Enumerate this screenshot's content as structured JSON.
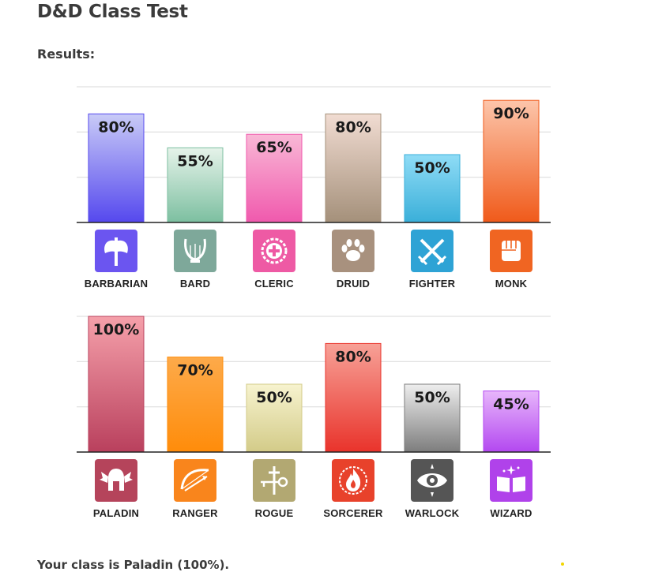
{
  "page": {
    "title": "D&D Class Test",
    "results_label": "Results:",
    "result_text": "Your class is Paladin (100%)."
  },
  "chart_data": [
    {
      "type": "bar",
      "categories": [
        "BARBARIAN",
        "BARD",
        "CLERIC",
        "DRUID",
        "FIGHTER",
        "MONK"
      ],
      "values": [
        80,
        55,
        65,
        80,
        50,
        90
      ],
      "value_labels": [
        "80%",
        "55%",
        "65%",
        "80%",
        "50%",
        "90%"
      ],
      "ylim": [
        0,
        100
      ],
      "grid": true,
      "colors": [
        [
          "#c9cbf7",
          "#5548ee"
        ],
        [
          "#e6f3ea",
          "#7cbfa0"
        ],
        [
          "#f9b8d6",
          "#f059ad"
        ],
        [
          "#f1dcd2",
          "#a4907a"
        ],
        [
          "#8fdcf6",
          "#3aafd9"
        ],
        [
          "#fcc5aa",
          "#f05a1a"
        ]
      ],
      "icons": [
        "battle-axe-icon",
        "lyre-icon",
        "holy-cross-icon",
        "paw-print-icon",
        "crossed-swords-icon",
        "fist-icon"
      ],
      "icon_colors": [
        "#6b55f0",
        "#7ea89a",
        "#ee5aa4",
        "#a8917e",
        "#2ea3d5",
        "#f06522"
      ]
    },
    {
      "type": "bar",
      "categories": [
        "PALADIN",
        "RANGER",
        "ROGUE",
        "SORCERER",
        "WARLOCK",
        "WIZARD"
      ],
      "values": [
        100,
        70,
        50,
        80,
        50,
        45
      ],
      "value_labels": [
        "100%",
        "70%",
        "50%",
        "80%",
        "50%",
        "45%"
      ],
      "ylim": [
        0,
        100
      ],
      "grid": true,
      "colors": [
        [
          "#f5a0aa",
          "#b9405d"
        ],
        [
          "#fdaa4a",
          "#ff8c0a"
        ],
        [
          "#f7f3cf",
          "#d3cb88"
        ],
        [
          "#f7a197",
          "#e9332b"
        ],
        [
          "#eeeeee",
          "#7d7d7d"
        ],
        [
          "#e7b6fb",
          "#b348f0"
        ]
      ],
      "icons": [
        "winged-helmet-icon",
        "bow-and-arrow-icon",
        "key-and-dagger-icon",
        "flame-icon",
        "evil-eye-icon",
        "spellbook-icon"
      ],
      "icon_colors": [
        "#b5445b",
        "#f9851c",
        "#b2a872",
        "#e8422b",
        "#555555",
        "#b042ea"
      ]
    }
  ]
}
